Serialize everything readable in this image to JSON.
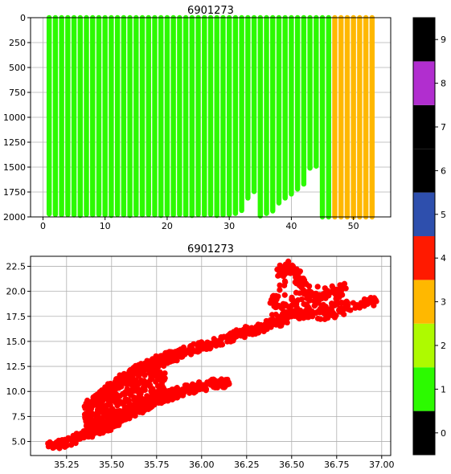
{
  "chart_data": [
    {
      "type": "bar",
      "title": "6901273",
      "xlabel": "",
      "ylabel": "",
      "xlim": [
        -2,
        56
      ],
      "ylim": [
        2000,
        0
      ],
      "y_inverted": true,
      "grid": true,
      "x_ticks": [
        "0",
        "10",
        "20",
        "30",
        "40",
        "50"
      ],
      "y_ticks": [
        "0",
        "250",
        "500",
        "750",
        "1000",
        "1250",
        "1500",
        "1750",
        "2000"
      ],
      "profiles": {
        "cycle": [
          1,
          2,
          3,
          4,
          5,
          6,
          7,
          8,
          9,
          10,
          11,
          12,
          13,
          14,
          15,
          16,
          17,
          18,
          19,
          20,
          21,
          22,
          23,
          24,
          25,
          26,
          27,
          28,
          29,
          30,
          31,
          32,
          33,
          34,
          35,
          36,
          37,
          38,
          39,
          40,
          41,
          42,
          43,
          44,
          45,
          46,
          47,
          48,
          49,
          50,
          51,
          52,
          53
        ],
        "max_pressure": [
          1970,
          1975,
          1978,
          1975,
          1980,
          1985,
          1975,
          1980,
          1975,
          1980,
          1985,
          1975,
          1980,
          1985,
          1975,
          1980,
          1975,
          1980,
          1985,
          1975,
          1980,
          1975,
          1980,
          1985,
          1975,
          1980,
          1975,
          1985,
          1980,
          1975,
          1965,
          1935,
          1810,
          1745,
          1990,
          1965,
          1940,
          1860,
          1810,
          1770,
          1720,
          1670,
          1510,
          1490,
          2000,
          2000,
          2000,
          2000,
          2000,
          2000,
          2000,
          2000,
          2000
        ],
        "qc_flag": [
          1,
          1,
          1,
          1,
          1,
          1,
          1,
          1,
          1,
          1,
          1,
          1,
          1,
          1,
          1,
          1,
          1,
          1,
          1,
          1,
          1,
          1,
          1,
          1,
          1,
          1,
          1,
          1,
          1,
          1,
          1,
          1,
          1,
          1,
          1,
          1,
          1,
          1,
          1,
          1,
          1,
          1,
          1,
          1,
          1,
          1,
          3,
          3,
          3,
          3,
          3,
          3,
          3
        ]
      }
    },
    {
      "type": "scatter",
      "title": "6901273",
      "xlabel": "",
      "ylabel": "",
      "xlim": [
        35.05,
        37.05
      ],
      "ylim": [
        3.6,
        23.5
      ],
      "grid": true,
      "x_ticks": [
        "35.25",
        "35.50",
        "35.75",
        "36.00",
        "36.25",
        "36.50",
        "36.75",
        "37.00"
      ],
      "y_ticks": [
        "5.0",
        "7.5",
        "10.0",
        "12.5",
        "15.0",
        "17.5",
        "20.0",
        "22.5"
      ],
      "marker_color": "#ff0000",
      "qc_flag": 4,
      "series": [
        {
          "points": [
            [
              35.15,
              4.5
            ],
            [
              35.2,
              4.7
            ],
            [
              35.25,
              5.0
            ],
            [
              35.3,
              5.3
            ],
            [
              35.35,
              5.6
            ],
            [
              35.4,
              5.9
            ],
            [
              35.45,
              6.3
            ],
            [
              35.5,
              6.8
            ],
            [
              35.55,
              7.3
            ],
            [
              35.6,
              7.8
            ],
            [
              35.65,
              8.3
            ],
            [
              35.7,
              8.7
            ],
            [
              35.75,
              9.1
            ],
            [
              35.8,
              9.5
            ],
            [
              35.85,
              9.8
            ],
            [
              35.9,
              10.1
            ],
            [
              35.95,
              10.3
            ],
            [
              36.0,
              10.5
            ],
            [
              36.05,
              10.7
            ],
            [
              36.1,
              10.8
            ],
            [
              36.15,
              10.9
            ],
            [
              35.35,
              8.5
            ],
            [
              35.4,
              9.0
            ],
            [
              35.45,
              9.6
            ],
            [
              35.5,
              10.3
            ],
            [
              35.55,
              11.0
            ],
            [
              35.6,
              11.6
            ],
            [
              35.65,
              12.2
            ],
            [
              35.7,
              12.6
            ],
            [
              35.75,
              13.0
            ],
            [
              35.8,
              13.3
            ],
            [
              35.85,
              13.6
            ],
            [
              35.9,
              13.9
            ],
            [
              35.95,
              14.2
            ],
            [
              36.0,
              14.5
            ],
            [
              36.05,
              14.8
            ],
            [
              36.1,
              15.1
            ],
            [
              36.15,
              15.4
            ],
            [
              36.2,
              15.7
            ],
            [
              36.25,
              16.0
            ],
            [
              36.3,
              16.3
            ],
            [
              36.35,
              16.6
            ],
            [
              36.4,
              16.9
            ],
            [
              36.45,
              17.2
            ],
            [
              36.5,
              17.5
            ],
            [
              36.55,
              17.7
            ],
            [
              36.6,
              17.9
            ],
            [
              36.7,
              18.2
            ],
            [
              36.8,
              18.5
            ],
            [
              36.9,
              18.8
            ],
            [
              36.97,
              19.0
            ],
            [
              36.43,
              21.6
            ],
            [
              36.47,
              22.6
            ],
            [
              36.52,
              21.8
            ],
            [
              36.55,
              20.9
            ],
            [
              36.6,
              20.0
            ],
            [
              36.65,
              19.1
            ],
            [
              36.78,
              20.3
            ],
            [
              36.75,
              19.5
            ],
            [
              36.4,
              19.2
            ],
            [
              36.45,
              18.4
            ]
          ]
        }
      ]
    }
  ],
  "colorbar": {
    "tick_labels": [
      "0",
      "1",
      "2",
      "3",
      "4",
      "5",
      "6",
      "7",
      "8",
      "9"
    ],
    "colors": [
      "#000000",
      "#2cfa00",
      "#aefa00",
      "#ffb800",
      "#ff1a00",
      "#2e4fad",
      "#000000",
      "#000000",
      "#b12ecf",
      "#000000"
    ]
  }
}
